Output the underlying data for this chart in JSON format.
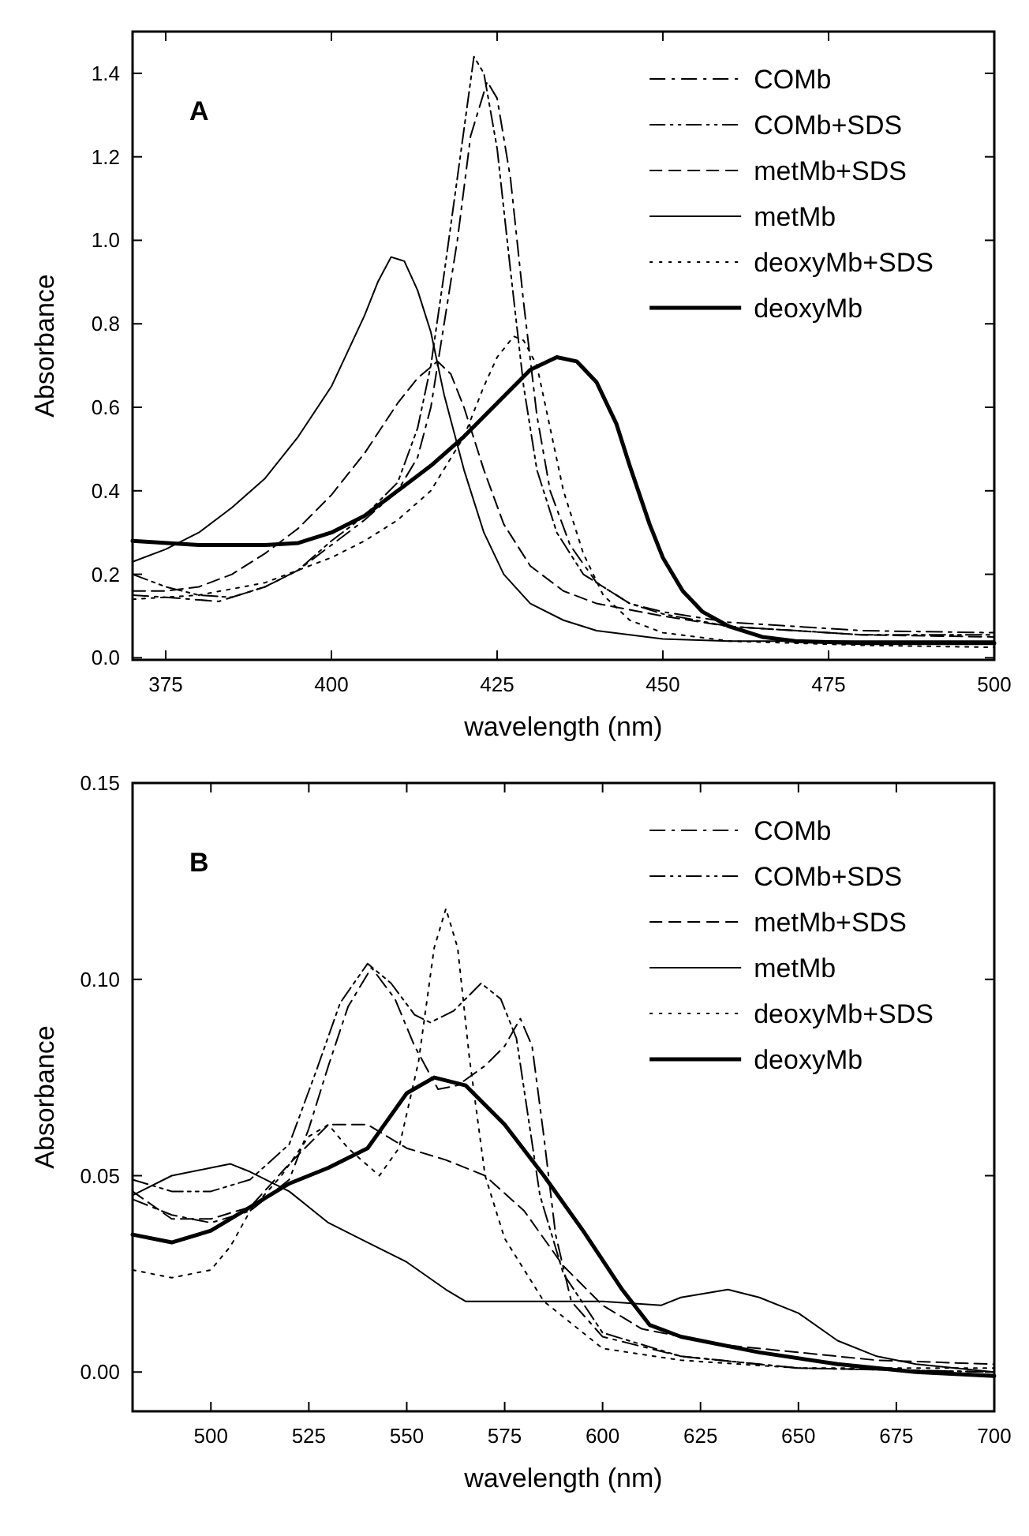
{
  "chart_data": [
    {
      "type": "line",
      "annotations": [
        "A"
      ],
      "xlabel": "wavelength (nm)",
      "ylabel": "Absorbance",
      "xlim": [
        370,
        500
      ],
      "xticks": [
        375,
        400,
        425,
        450,
        475,
        500
      ],
      "ylim": [
        -0.005,
        1.5
      ],
      "yticks": [
        {
          "value": 0,
          "label": "0.0"
        },
        0.2,
        0.4,
        0.6,
        0.8,
        {
          "value": 1,
          "label": "1.0"
        },
        1.2,
        1.4
      ],
      "legend": "top right",
      "grid": false,
      "series": [
        {
          "name": "COMb",
          "color": "#000000",
          "line_style": "dashdot",
          "x": [
            370,
            375,
            383,
            390,
            395,
            400,
            405,
            410,
            413,
            415,
            417,
            419,
            421,
            423.5,
            425,
            427,
            429,
            431,
            433,
            436,
            440,
            445,
            450,
            460,
            480,
            500
          ],
          "values": [
            0.15,
            0.145,
            0.135,
            0.17,
            0.21,
            0.27,
            0.33,
            0.4,
            0.48,
            0.6,
            0.8,
            1.0,
            1.25,
            1.38,
            1.34,
            1.15,
            0.85,
            0.58,
            0.4,
            0.27,
            0.18,
            0.13,
            0.11,
            0.085,
            0.065,
            0.06
          ]
        },
        {
          "name": "COMb+SDS",
          "color": "#000000",
          "line_style": "dashdotdot",
          "x": [
            370,
            375,
            380,
            385,
            390,
            395,
            400,
            405,
            410,
            413,
            415,
            417,
            419,
            421.5,
            423,
            425,
            427,
            429,
            431,
            434,
            438,
            445,
            450,
            460,
            480,
            500
          ],
          "values": [
            0.2,
            0.17,
            0.15,
            0.145,
            0.17,
            0.21,
            0.28,
            0.34,
            0.42,
            0.55,
            0.7,
            0.92,
            1.15,
            1.44,
            1.4,
            1.22,
            0.93,
            0.65,
            0.45,
            0.3,
            0.2,
            0.13,
            0.105,
            0.075,
            0.055,
            0.055
          ]
        },
        {
          "name": "metMb+SDS",
          "color": "#000000",
          "line_style": "dashed",
          "x": [
            370,
            375,
            380,
            385,
            390,
            395,
            400,
            405,
            410,
            413,
            416,
            418,
            420,
            423,
            426,
            430,
            435,
            440,
            450,
            460,
            480,
            500
          ],
          "values": [
            0.16,
            0.16,
            0.17,
            0.2,
            0.25,
            0.31,
            0.39,
            0.49,
            0.61,
            0.67,
            0.71,
            0.68,
            0.6,
            0.45,
            0.32,
            0.22,
            0.16,
            0.13,
            0.1,
            0.075,
            0.055,
            0.05
          ]
        },
        {
          "name": "metMb",
          "color": "#000000",
          "line_style": "solid",
          "x": [
            370,
            375,
            380,
            385,
            390,
            395,
            400,
            405,
            407,
            409,
            411,
            413,
            415,
            417,
            420,
            423,
            426,
            430,
            435,
            440,
            450,
            460,
            500
          ],
          "values": [
            0.23,
            0.26,
            0.3,
            0.36,
            0.43,
            0.53,
            0.65,
            0.82,
            0.9,
            0.96,
            0.95,
            0.88,
            0.78,
            0.63,
            0.45,
            0.3,
            0.2,
            0.13,
            0.09,
            0.065,
            0.045,
            0.04,
            0.04
          ]
        },
        {
          "name": "deoxyMb+SDS",
          "color": "#000000",
          "line_style": "dotted",
          "x": [
            370,
            380,
            390,
            400,
            405,
            410,
            415,
            420,
            423,
            425,
            427.5,
            429,
            431,
            433,
            435,
            438,
            441,
            445,
            450,
            460,
            480,
            500
          ],
          "values": [
            0.14,
            0.15,
            0.18,
            0.24,
            0.28,
            0.33,
            0.4,
            0.53,
            0.65,
            0.72,
            0.77,
            0.76,
            0.7,
            0.55,
            0.4,
            0.25,
            0.15,
            0.09,
            0.06,
            0.04,
            0.03,
            0.025
          ]
        },
        {
          "name": "deoxyMb",
          "color": "#000000",
          "line_style": "solid",
          "x": [
            370,
            380,
            390,
            395,
            400,
            405,
            410,
            415,
            420,
            425,
            430,
            434,
            437,
            440,
            443,
            445,
            448,
            450,
            453,
            456,
            460,
            465,
            470,
            480,
            500
          ],
          "values": [
            0.28,
            0.27,
            0.27,
            0.275,
            0.3,
            0.34,
            0.4,
            0.46,
            0.53,
            0.61,
            0.69,
            0.72,
            0.71,
            0.66,
            0.56,
            0.46,
            0.32,
            0.24,
            0.16,
            0.11,
            0.075,
            0.05,
            0.04,
            0.035,
            0.035
          ]
        }
      ]
    },
    {
      "type": "line",
      "annotations": [
        "B"
      ],
      "xlabel": "wavelength (nm)",
      "ylabel": "Absorbance",
      "xlim": [
        480,
        700
      ],
      "xticks": [
        500,
        525,
        550,
        575,
        600,
        625,
        650,
        675,
        700
      ],
      "ylim": [
        -0.01,
        0.15
      ],
      "yticks": [
        {
          "value": 0,
          "label": "0.00"
        },
        {
          "value": 0.05,
          "label": "0.05"
        },
        {
          "value": 0.1,
          "label": "0.10"
        },
        0.15
      ],
      "legend": "top right",
      "grid": false,
      "series": [
        {
          "name": "COMb",
          "color": "#000000",
          "line_style": "dashdot",
          "x": [
            480,
            490,
            500,
            510,
            520,
            525,
            530,
            535,
            541,
            547,
            552,
            558,
            563,
            570,
            575,
            579,
            582,
            585,
            588,
            592,
            600,
            620,
            650,
            700
          ],
          "values": [
            0.044,
            0.04,
            0.038,
            0.041,
            0.049,
            0.062,
            0.078,
            0.093,
            0.103,
            0.095,
            0.083,
            0.072,
            0.073,
            0.078,
            0.083,
            0.09,
            0.083,
            0.06,
            0.035,
            0.018,
            0.009,
            0.004,
            0.001,
            0
          ]
        },
        {
          "name": "COMb+SDS",
          "color": "#000000",
          "line_style": "dashdotdot",
          "x": [
            480,
            490,
            500,
            510,
            520,
            527,
            533,
            540,
            546,
            552,
            556,
            562,
            569,
            574,
            578,
            581,
            584,
            590,
            600,
            620,
            650,
            700
          ],
          "values": [
            0.049,
            0.046,
            0.046,
            0.049,
            0.058,
            0.077,
            0.094,
            0.104,
            0.099,
            0.091,
            0.089,
            0.092,
            0.099,
            0.095,
            0.085,
            0.065,
            0.045,
            0.025,
            0.01,
            0.004,
            0.001,
            0
          ]
        },
        {
          "name": "metMb+SDS",
          "color": "#000000",
          "line_style": "dashed",
          "x": [
            480,
            490,
            500,
            510,
            520,
            530,
            540,
            550,
            560,
            570,
            580,
            590,
            600,
            610,
            630,
            650,
            670,
            700
          ],
          "values": [
            0.046,
            0.039,
            0.039,
            0.042,
            0.053,
            0.063,
            0.063,
            0.057,
            0.054,
            0.05,
            0.041,
            0.027,
            0.017,
            0.011,
            0.007,
            0.005,
            0.003,
            0.002
          ]
        },
        {
          "name": "metMb",
          "color": "#000000",
          "line_style": "solid",
          "x": [
            480,
            490,
            500,
            505,
            510,
            520,
            530,
            540,
            550,
            560,
            565,
            580,
            600,
            615,
            620,
            632,
            640,
            650,
            660,
            670,
            680,
            700
          ],
          "values": [
            0.045,
            0.05,
            0.052,
            0.053,
            0.051,
            0.046,
            0.038,
            0.033,
            0.028,
            0.021,
            0.018,
            0.018,
            0.018,
            0.017,
            0.019,
            0.021,
            0.019,
            0.015,
            0.008,
            0.004,
            0.002,
            0
          ]
        },
        {
          "name": "deoxyMb+SDS",
          "color": "#000000",
          "line_style": "dotted",
          "x": [
            480,
            490,
            500,
            505,
            510,
            518,
            525,
            530,
            535,
            543,
            548,
            553,
            557,
            560,
            563,
            566,
            570,
            575,
            585,
            600,
            620,
            650,
            700
          ],
          "values": [
            0.026,
            0.024,
            0.026,
            0.032,
            0.041,
            0.05,
            0.06,
            0.063,
            0.057,
            0.05,
            0.057,
            0.079,
            0.108,
            0.118,
            0.108,
            0.08,
            0.05,
            0.034,
            0.018,
            0.006,
            0.003,
            0.001,
            0.001
          ]
        },
        {
          "name": "deoxyMb",
          "color": "#000000",
          "line_style": "solid",
          "x": [
            480,
            490,
            500,
            510,
            520,
            530,
            540,
            545,
            550,
            557,
            565,
            575,
            585,
            595,
            605,
            612,
            620,
            640,
            660,
            680,
            700
          ],
          "values": [
            0.035,
            0.033,
            0.036,
            0.042,
            0.048,
            0.052,
            0.057,
            0.064,
            0.071,
            0.075,
            0.073,
            0.063,
            0.05,
            0.036,
            0.021,
            0.012,
            0.009,
            0.005,
            0.002,
            0,
            -0.001
          ]
        }
      ]
    }
  ]
}
